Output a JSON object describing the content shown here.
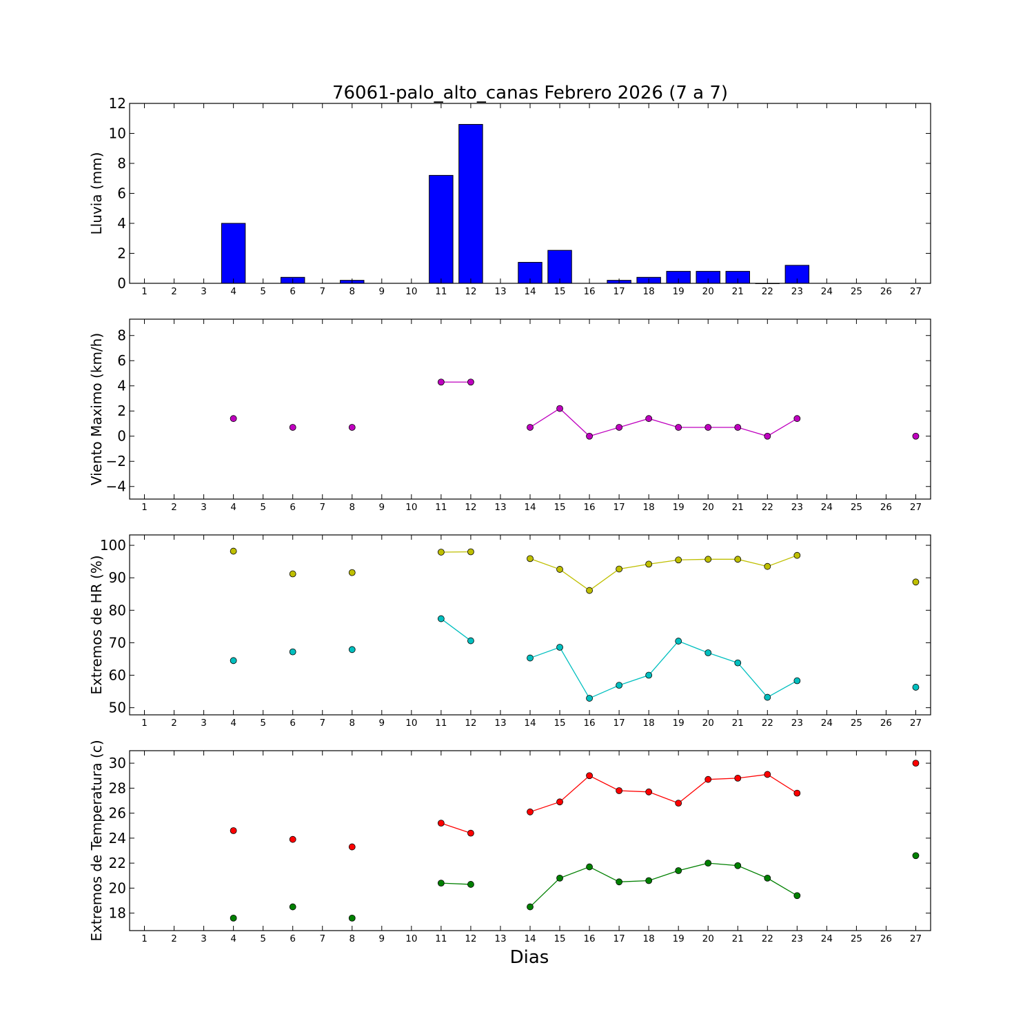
{
  "chart_data": {
    "type": "multi-panel",
    "title": "76061-palo_alto_canas Febrero 2026  (7 a 7)",
    "xlabel": "Dias",
    "x_ticks": [
      1,
      2,
      3,
      4,
      5,
      6,
      7,
      8,
      9,
      10,
      11,
      12,
      13,
      14,
      15,
      16,
      17,
      18,
      19,
      20,
      21,
      22,
      23,
      24,
      25,
      26,
      27
    ],
    "xlim": [
      0.5,
      27.5
    ],
    "panels": [
      {
        "type": "bar",
        "ylabel": "Lluvia (mm)",
        "ylim": [
          0,
          12
        ],
        "yticks": [
          0,
          2,
          4,
          6,
          8,
          10,
          12
        ],
        "series": [
          {
            "color": "#0000ff",
            "x": [
              4,
              6,
              8,
              11,
              12,
              14,
              15,
              17,
              18,
              19,
              20,
              21,
              22,
              23
            ],
            "values": [
              4.0,
              0.4,
              0.2,
              7.2,
              10.6,
              1.4,
              2.2,
              0.2,
              0.4,
              0.8,
              0.8,
              0.8,
              0.0,
              1.2
            ]
          }
        ]
      },
      {
        "type": "line",
        "ylabel": "Viento Maximo (km/h)",
        "ylim": [
          -5,
          9.3
        ],
        "yticks": [
          -4,
          -2,
          0,
          2,
          4,
          6,
          8
        ],
        "series": [
          {
            "color": "#bf00bf",
            "segments": [
              [
                [
                  4,
                  1.4
                ]
              ],
              [
                [
                  6,
                  0.7
                ]
              ],
              [
                [
                  8,
                  0.7
                ]
              ],
              [
                [
                  11,
                  4.3
                ],
                [
                  12,
                  4.3
                ]
              ],
              [
                [
                  14,
                  0.7
                ],
                [
                  15,
                  2.2
                ],
                [
                  16,
                  0.0
                ],
                [
                  17,
                  0.7
                ],
                [
                  18,
                  1.4
                ],
                [
                  19,
                  0.7
                ],
                [
                  20,
                  0.7
                ],
                [
                  21,
                  0.7
                ],
                [
                  22,
                  0.0
                ],
                [
                  23,
                  1.4
                ]
              ],
              [
                [
                  27,
                  0.0
                ]
              ]
            ]
          }
        ]
      },
      {
        "type": "line",
        "ylabel": "Extremos de HR (%)",
        "ylim": [
          47.8,
          103.2
        ],
        "yticks": [
          50,
          60,
          70,
          80,
          90,
          100
        ],
        "series": [
          {
            "color": "#bfbf00",
            "segments": [
              [
                [
                  4,
                  98.2
                ]
              ],
              [
                [
                  6,
                  91.2
                ]
              ],
              [
                [
                  8,
                  91.6
                ]
              ],
              [
                [
                  11,
                  97.9
                ],
                [
                  12,
                  98.0
                ]
              ],
              [
                [
                  14,
                  95.9
                ],
                [
                  15,
                  92.6
                ],
                [
                  16,
                  86.1
                ],
                [
                  17,
                  92.7
                ],
                [
                  18,
                  94.2
                ],
                [
                  19,
                  95.5
                ],
                [
                  20,
                  95.7
                ],
                [
                  21,
                  95.7
                ],
                [
                  22,
                  93.5
                ],
                [
                  23,
                  96.9
                ]
              ],
              [
                [
                  27,
                  88.7
                ]
              ]
            ]
          },
          {
            "color": "#00bfbf",
            "segments": [
              [
                [
                  4,
                  64.5
                ]
              ],
              [
                [
                  6,
                  67.2
                ]
              ],
              [
                [
                  8,
                  67.9
                ]
              ],
              [
                [
                  11,
                  77.4
                ],
                [
                  12,
                  70.6
                ]
              ],
              [
                [
                  14,
                  65.3
                ],
                [
                  15,
                  68.6
                ],
                [
                  16,
                  52.9
                ],
                [
                  17,
                  56.9
                ],
                [
                  18,
                  60.0
                ],
                [
                  19,
                  70.5
                ],
                [
                  20,
                  66.9
                ],
                [
                  21,
                  63.8
                ],
                [
                  22,
                  53.2
                ],
                [
                  23,
                  58.3
                ]
              ],
              [
                [
                  27,
                  56.3
                ]
              ]
            ]
          }
        ]
      },
      {
        "type": "line",
        "ylabel": "Extremos de Temperatura (c)",
        "ylim": [
          16.6,
          31.0
        ],
        "yticks": [
          18,
          20,
          22,
          24,
          26,
          28,
          30
        ],
        "series": [
          {
            "color": "#ff0000",
            "segments": [
              [
                [
                  4,
                  24.6
                ]
              ],
              [
                [
                  6,
                  23.9
                ]
              ],
              [
                [
                  8,
                  23.3
                ]
              ],
              [
                [
                  11,
                  25.2
                ],
                [
                  12,
                  24.4
                ]
              ],
              [
                [
                  14,
                  26.1
                ],
                [
                  15,
                  26.9
                ],
                [
                  16,
                  29.0
                ],
                [
                  17,
                  27.8
                ],
                [
                  18,
                  27.7
                ],
                [
                  19,
                  26.8
                ],
                [
                  20,
                  28.7
                ],
                [
                  21,
                  28.8
                ],
                [
                  22,
                  29.1
                ],
                [
                  23,
                  27.6
                ]
              ],
              [
                [
                  27,
                  30.0
                ]
              ]
            ]
          },
          {
            "color": "#008000",
            "segments": [
              [
                [
                  4,
                  17.6
                ]
              ],
              [
                [
                  6,
                  18.5
                ]
              ],
              [
                [
                  8,
                  17.6
                ]
              ],
              [
                [
                  11,
                  20.4
                ],
                [
                  12,
                  20.3
                ]
              ],
              [
                [
                  14,
                  18.5
                ],
                [
                  15,
                  20.8
                ],
                [
                  16,
                  21.7
                ],
                [
                  17,
                  20.5
                ],
                [
                  18,
                  20.6
                ],
                [
                  19,
                  21.4
                ],
                [
                  20,
                  22.0
                ],
                [
                  21,
                  21.8
                ],
                [
                  22,
                  20.8
                ],
                [
                  23,
                  19.4
                ]
              ],
              [
                [
                  27,
                  22.6
                ]
              ]
            ]
          }
        ]
      }
    ]
  }
}
